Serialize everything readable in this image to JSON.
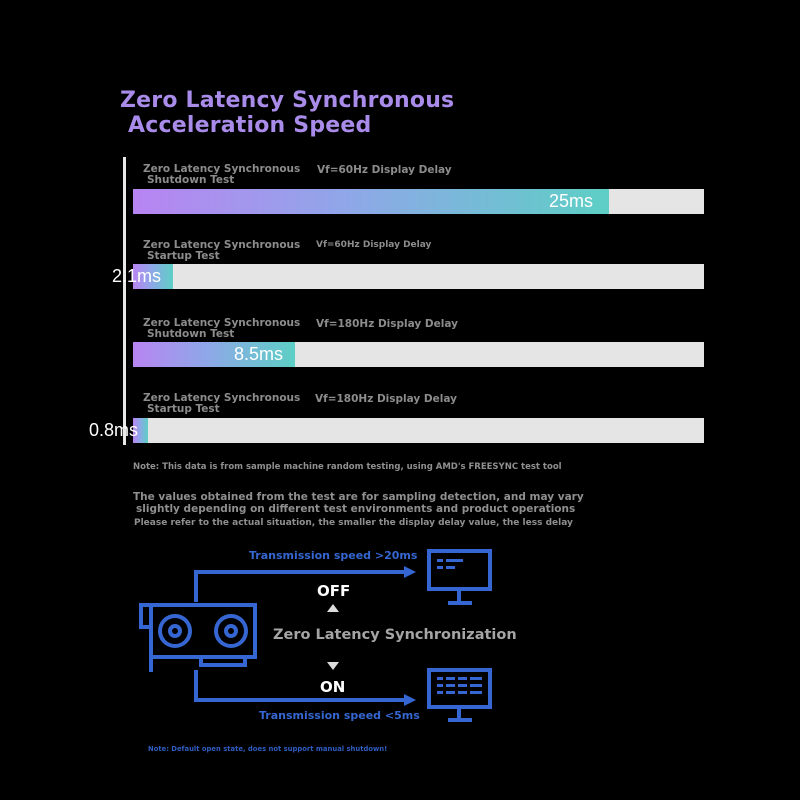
{
  "title": {
    "line1": "Zero Latency Synchronous",
    "line2": "Acceleration Speed"
  },
  "chart_data": {
    "type": "bar",
    "orientation": "horizontal",
    "title": "Zero Latency Synchronous Acceleration Speed",
    "unit": "ms",
    "xlim": [
      0,
      30
    ],
    "rows": [
      {
        "label_line1": "Zero Latency Synchronous",
        "label_line2": "Shutdown Test",
        "delay_label": "Vf=60Hz Display Delay",
        "value": 25,
        "value_label": "25ms"
      },
      {
        "label_line1": "Zero Latency Synchronous",
        "label_line2": "Startup Test",
        "delay_label": "Vf=60Hz Display Delay",
        "value": 2.1,
        "value_label": "2.1ms"
      },
      {
        "label_line1": "Zero Latency Synchronous",
        "label_line2": "Shutdown Test",
        "delay_label": "Vf=180Hz Display Delay",
        "value": 8.5,
        "value_label": "8.5ms"
      },
      {
        "label_line1": "Zero Latency Synchronous",
        "label_line2": "Startup Test",
        "delay_label": "Vf=180Hz Display Delay",
        "value": 0.8,
        "value_label": "0.8ms"
      }
    ],
    "colors": {
      "gradient_start": "#b884f2",
      "gradient_end": "#5dcfc5",
      "track": "#e5e5e5"
    }
  },
  "notes": {
    "note1": "Note: This data is from sample machine random testing, using AMD's FREESYNC test tool",
    "note2_line1": "The values obtained from the test are for sampling detection, and may vary",
    "note2_line2": "slightly depending on different test environments and product operations",
    "note3": "Please refer to the actual situation, the smaller the display delay value, the less delay"
  },
  "diagram": {
    "off_speed": "Transmission speed >20ms",
    "off_label": "OFF",
    "center_label": "Zero Latency Synchronization",
    "on_label": "ON",
    "on_speed": "Transmission speed <5ms",
    "footnote": "Note: Default open state, does not support manual shutdown!",
    "icons": [
      "graphics-card-icon",
      "monitor-icon",
      "monitor-grid-icon"
    ],
    "line_color": "#3566d1"
  }
}
